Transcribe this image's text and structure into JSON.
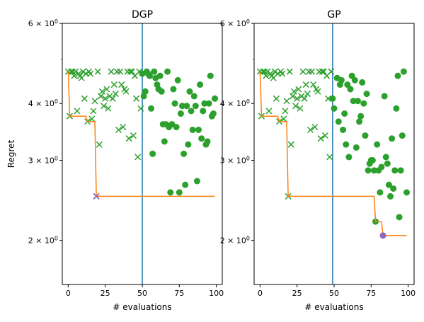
{
  "chart_data": [
    {
      "type": "scatter",
      "title": "DGP",
      "xlabel": "# evaluations",
      "ylabel": "Regret",
      "y_scale": "log",
      "xlim": [
        -4,
        104
      ],
      "ylim": [
        1.6,
        6.0
      ],
      "x_ticks": [
        0,
        25,
        50,
        75,
        100
      ],
      "x_tick_labels": [
        "0",
        "25",
        "50",
        "75",
        "100"
      ],
      "y_major_ticks": [
        2,
        3,
        4,
        6
      ],
      "y_major_tick_labels": [
        "2 × 10^0",
        "3 × 10^0",
        "4 × 10^0",
        "6 × 10^0"
      ],
      "y_minor_ticks": [
        5
      ],
      "grid": false,
      "vertical_line": {
        "x": 50,
        "color": "#1f77b4"
      },
      "colors": {
        "initial": "#2ca02c",
        "evaluations": "#2ca02c",
        "best_so_far": "#ff7f0e",
        "best": "#9467bd"
      },
      "initial_points": [
        {
          "x": 0,
          "y": 4.7
        },
        {
          "x": 1,
          "y": 3.75
        },
        {
          "x": 2,
          "y": 4.7
        },
        {
          "x": 3,
          "y": 4.7
        },
        {
          "x": 4,
          "y": 4.6
        },
        {
          "x": 5,
          "y": 4.7
        },
        {
          "x": 6,
          "y": 3.85
        },
        {
          "x": 7,
          "y": 4.65
        },
        {
          "x": 8,
          "y": 4.6
        },
        {
          "x": 9,
          "y": 4.55
        },
        {
          "x": 10,
          "y": 4.7
        },
        {
          "x": 11,
          "y": 4.1
        },
        {
          "x": 12,
          "y": 4.65
        },
        {
          "x": 13,
          "y": 3.65
        },
        {
          "x": 14,
          "y": 4.7
        },
        {
          "x": 15,
          "y": 4.65
        },
        {
          "x": 16,
          "y": 3.7
        },
        {
          "x": 17,
          "y": 3.85
        },
        {
          "x": 18,
          "y": 4.05
        },
        {
          "x": 19,
          "y": 2.5
        },
        {
          "x": 20,
          "y": 4.7
        },
        {
          "x": 21,
          "y": 3.25
        },
        {
          "x": 22,
          "y": 4.15
        },
        {
          "x": 23,
          "y": 4.25
        },
        {
          "x": 24,
          "y": 3.95
        },
        {
          "x": 25,
          "y": 4.1
        },
        {
          "x": 26,
          "y": 4.3
        },
        {
          "x": 27,
          "y": 3.9
        },
        {
          "x": 28,
          "y": 4.15
        },
        {
          "x": 29,
          "y": 4.7
        },
        {
          "x": 30,
          "y": 4.1
        },
        {
          "x": 31,
          "y": 4.4
        },
        {
          "x": 32,
          "y": 4.2
        },
        {
          "x": 33,
          "y": 4.7
        },
        {
          "x": 34,
          "y": 3.5
        },
        {
          "x": 35,
          "y": 4.7
        },
        {
          "x": 36,
          "y": 4.4
        },
        {
          "x": 37,
          "y": 3.55
        },
        {
          "x": 38,
          "y": 4.3
        },
        {
          "x": 39,
          "y": 4.25
        },
        {
          "x": 40,
          "y": 4.7
        },
        {
          "x": 41,
          "y": 3.35
        },
        {
          "x": 42,
          "y": 4.7
        },
        {
          "x": 43,
          "y": 4.7
        },
        {
          "x": 44,
          "y": 3.4
        },
        {
          "x": 45,
          "y": 4.6
        },
        {
          "x": 46,
          "y": 4.1
        },
        {
          "x": 47,
          "y": 3.05
        },
        {
          "x": 48,
          "y": 4.7
        },
        {
          "x": 49,
          "y": 3.9
        }
      ],
      "evaluation_points": [
        {
          "x": 50,
          "y": 4.65
        },
        {
          "x": 51,
          "y": 4.15
        },
        {
          "x": 52,
          "y": 4.25
        },
        {
          "x": 53,
          "y": 4.7
        },
        {
          "x": 54,
          "y": 4.65
        },
        {
          "x": 55,
          "y": 4.6
        },
        {
          "x": 56,
          "y": 3.9
        },
        {
          "x": 57,
          "y": 3.1
        },
        {
          "x": 58,
          "y": 4.7
        },
        {
          "x": 59,
          "y": 4.55
        },
        {
          "x": 60,
          "y": 4.4
        },
        {
          "x": 61,
          "y": 4.3
        },
        {
          "x": 62,
          "y": 4.6
        },
        {
          "x": 63,
          "y": 4.25
        },
        {
          "x": 64,
          "y": 3.6
        },
        {
          "x": 65,
          "y": 3.3
        },
        {
          "x": 66,
          "y": 3.6
        },
        {
          "x": 67,
          "y": 4.7
        },
        {
          "x": 68,
          "y": 3.55
        },
        {
          "x": 69,
          "y": 2.55
        },
        {
          "x": 70,
          "y": 3.6
        },
        {
          "x": 71,
          "y": 4.3
        },
        {
          "x": 72,
          "y": 4.0
        },
        {
          "x": 73,
          "y": 3.55
        },
        {
          "x": 74,
          "y": 4.5
        },
        {
          "x": 75,
          "y": 2.55
        },
        {
          "x": 76,
          "y": 3.8
        },
        {
          "x": 77,
          "y": 3.95
        },
        {
          "x": 78,
          "y": 3.1
        },
        {
          "x": 79,
          "y": 2.65
        },
        {
          "x": 80,
          "y": 3.95
        },
        {
          "x": 81,
          "y": 3.25
        },
        {
          "x": 82,
          "y": 4.25
        },
        {
          "x": 83,
          "y": 3.85
        },
        {
          "x": 84,
          "y": 3.5
        },
        {
          "x": 85,
          "y": 4.15
        },
        {
          "x": 86,
          "y": 3.95
        },
        {
          "x": 87,
          "y": 2.7
        },
        {
          "x": 88,
          "y": 3.5
        },
        {
          "x": 89,
          "y": 4.4
        },
        {
          "x": 90,
          "y": 3.35
        },
        {
          "x": 91,
          "y": 3.85
        },
        {
          "x": 92,
          "y": 4.0
        },
        {
          "x": 93,
          "y": 3.25
        },
        {
          "x": 94,
          "y": 3.3
        },
        {
          "x": 95,
          "y": 4.0
        },
        {
          "x": 96,
          "y": 4.6
        },
        {
          "x": 97,
          "y": 3.75
        },
        {
          "x": 98,
          "y": 3.8
        },
        {
          "x": 99,
          "y": 4.1
        }
      ],
      "best_so_far_line": [
        {
          "x": 0,
          "y": 4.7
        },
        {
          "x": 1,
          "y": 3.75
        },
        {
          "x": 12,
          "y": 3.75
        },
        {
          "x": 13,
          "y": 3.65
        },
        {
          "x": 18,
          "y": 3.65
        },
        {
          "x": 19,
          "y": 2.5
        },
        {
          "x": 99,
          "y": 2.5
        }
      ],
      "best_point": {
        "x": 19,
        "y": 2.5
      }
    },
    {
      "type": "scatter",
      "title": "GP",
      "xlabel": "# evaluations",
      "ylabel": "",
      "y_scale": "log",
      "xlim": [
        -4,
        104
      ],
      "ylim": [
        1.6,
        6.0
      ],
      "x_ticks": [
        0,
        25,
        50,
        75,
        100
      ],
      "x_tick_labels": [
        "0",
        "25",
        "50",
        "75",
        "100"
      ],
      "y_major_ticks": [
        2,
        3,
        4,
        6
      ],
      "y_major_tick_labels": [
        "2 × 10^0",
        "3 × 10^0",
        "4 × 10^0",
        "6 × 10^0"
      ],
      "y_minor_ticks": [
        5
      ],
      "grid": false,
      "vertical_line": {
        "x": 49,
        "color": "#1f77b4"
      },
      "colors": {
        "initial": "#2ca02c",
        "evaluations": "#2ca02c",
        "best_so_far": "#ff7f0e",
        "best": "#9467bd"
      },
      "initial_points": [
        {
          "x": 0,
          "y": 4.7
        },
        {
          "x": 1,
          "y": 3.75
        },
        {
          "x": 2,
          "y": 4.7
        },
        {
          "x": 3,
          "y": 4.7
        },
        {
          "x": 4,
          "y": 4.6
        },
        {
          "x": 5,
          "y": 4.7
        },
        {
          "x": 6,
          "y": 3.85
        },
        {
          "x": 7,
          "y": 4.65
        },
        {
          "x": 8,
          "y": 4.6
        },
        {
          "x": 9,
          "y": 4.55
        },
        {
          "x": 10,
          "y": 4.7
        },
        {
          "x": 11,
          "y": 4.1
        },
        {
          "x": 12,
          "y": 4.65
        },
        {
          "x": 13,
          "y": 3.65
        },
        {
          "x": 14,
          "y": 4.7
        },
        {
          "x": 15,
          "y": 4.65
        },
        {
          "x": 16,
          "y": 3.7
        },
        {
          "x": 17,
          "y": 3.85
        },
        {
          "x": 18,
          "y": 4.05
        },
        {
          "x": 19,
          "y": 2.5
        },
        {
          "x": 20,
          "y": 4.7
        },
        {
          "x": 21,
          "y": 3.25
        },
        {
          "x": 22,
          "y": 4.15
        },
        {
          "x": 23,
          "y": 4.25
        },
        {
          "x": 24,
          "y": 3.95
        },
        {
          "x": 25,
          "y": 4.1
        },
        {
          "x": 26,
          "y": 4.3
        },
        {
          "x": 27,
          "y": 3.9
        },
        {
          "x": 28,
          "y": 4.15
        },
        {
          "x": 29,
          "y": 4.7
        },
        {
          "x": 30,
          "y": 4.1
        },
        {
          "x": 31,
          "y": 4.4
        },
        {
          "x": 32,
          "y": 4.2
        },
        {
          "x": 33,
          "y": 4.7
        },
        {
          "x": 34,
          "y": 3.5
        },
        {
          "x": 35,
          "y": 4.7
        },
        {
          "x": 36,
          "y": 4.4
        },
        {
          "x": 37,
          "y": 3.55
        },
        {
          "x": 38,
          "y": 4.3
        },
        {
          "x": 39,
          "y": 4.25
        },
        {
          "x": 40,
          "y": 4.7
        },
        {
          "x": 41,
          "y": 3.35
        },
        {
          "x": 42,
          "y": 4.7
        },
        {
          "x": 43,
          "y": 4.7
        },
        {
          "x": 44,
          "y": 3.4
        },
        {
          "x": 45,
          "y": 4.6
        },
        {
          "x": 46,
          "y": 4.1
        },
        {
          "x": 47,
          "y": 3.05
        },
        {
          "x": 48,
          "y": 4.7
        }
      ],
      "evaluation_points": [
        {
          "x": 49,
          "y": 4.1
        },
        {
          "x": 50,
          "y": 3.9
        },
        {
          "x": 52,
          "y": 4.55
        },
        {
          "x": 53,
          "y": 3.65
        },
        {
          "x": 54,
          "y": 4.4
        },
        {
          "x": 55,
          "y": 4.5
        },
        {
          "x": 56,
          "y": 3.5
        },
        {
          "x": 57,
          "y": 3.8
        },
        {
          "x": 58,
          "y": 3.25
        },
        {
          "x": 59,
          "y": 4.4
        },
        {
          "x": 60,
          "y": 3.05
        },
        {
          "x": 61,
          "y": 4.3
        },
        {
          "x": 62,
          "y": 4.6
        },
        {
          "x": 63,
          "y": 4.05
        },
        {
          "x": 64,
          "y": 4.5
        },
        {
          "x": 65,
          "y": 3.2
        },
        {
          "x": 66,
          "y": 4.05
        },
        {
          "x": 67,
          "y": 3.65
        },
        {
          "x": 68,
          "y": 3.75
        },
        {
          "x": 69,
          "y": 4.45
        },
        {
          "x": 70,
          "y": 4.0
        },
        {
          "x": 71,
          "y": 3.4
        },
        {
          "x": 72,
          "y": 4.2
        },
        {
          "x": 73,
          "y": 2.85
        },
        {
          "x": 74,
          "y": 2.95
        },
        {
          "x": 75,
          "y": 3.0
        },
        {
          "x": 76,
          "y": 3.0
        },
        {
          "x": 77,
          "y": 2.85
        },
        {
          "x": 78,
          "y": 2.2
        },
        {
          "x": 79,
          "y": 3.25
        },
        {
          "x": 80,
          "y": 2.85
        },
        {
          "x": 81,
          "y": 2.55
        },
        {
          "x": 82,
          "y": 2.9
        },
        {
          "x": 84,
          "y": 4.15
        },
        {
          "x": 85,
          "y": 3.05
        },
        {
          "x": 86,
          "y": 2.95
        },
        {
          "x": 87,
          "y": 2.65
        },
        {
          "x": 88,
          "y": 2.5
        },
        {
          "x": 89,
          "y": 3.35
        },
        {
          "x": 90,
          "y": 2.6
        },
        {
          "x": 91,
          "y": 2.85
        },
        {
          "x": 92,
          "y": 3.9
        },
        {
          "x": 93,
          "y": 4.6
        },
        {
          "x": 94,
          "y": 2.25
        },
        {
          "x": 95,
          "y": 2.85
        },
        {
          "x": 96,
          "y": 3.4
        },
        {
          "x": 97,
          "y": 4.7
        },
        {
          "x": 99,
          "y": 2.55
        }
      ],
      "best_so_far_line": [
        {
          "x": 0,
          "y": 4.7
        },
        {
          "x": 1,
          "y": 3.75
        },
        {
          "x": 12,
          "y": 3.75
        },
        {
          "x": 13,
          "y": 3.65
        },
        {
          "x": 18,
          "y": 3.65
        },
        {
          "x": 19,
          "y": 2.5
        },
        {
          "x": 77,
          "y": 2.5
        },
        {
          "x": 78,
          "y": 2.2
        },
        {
          "x": 82,
          "y": 2.2
        },
        {
          "x": 83,
          "y": 2.05
        },
        {
          "x": 99,
          "y": 2.05
        }
      ],
      "best_point": {
        "x": 83,
        "y": 2.05
      }
    }
  ]
}
